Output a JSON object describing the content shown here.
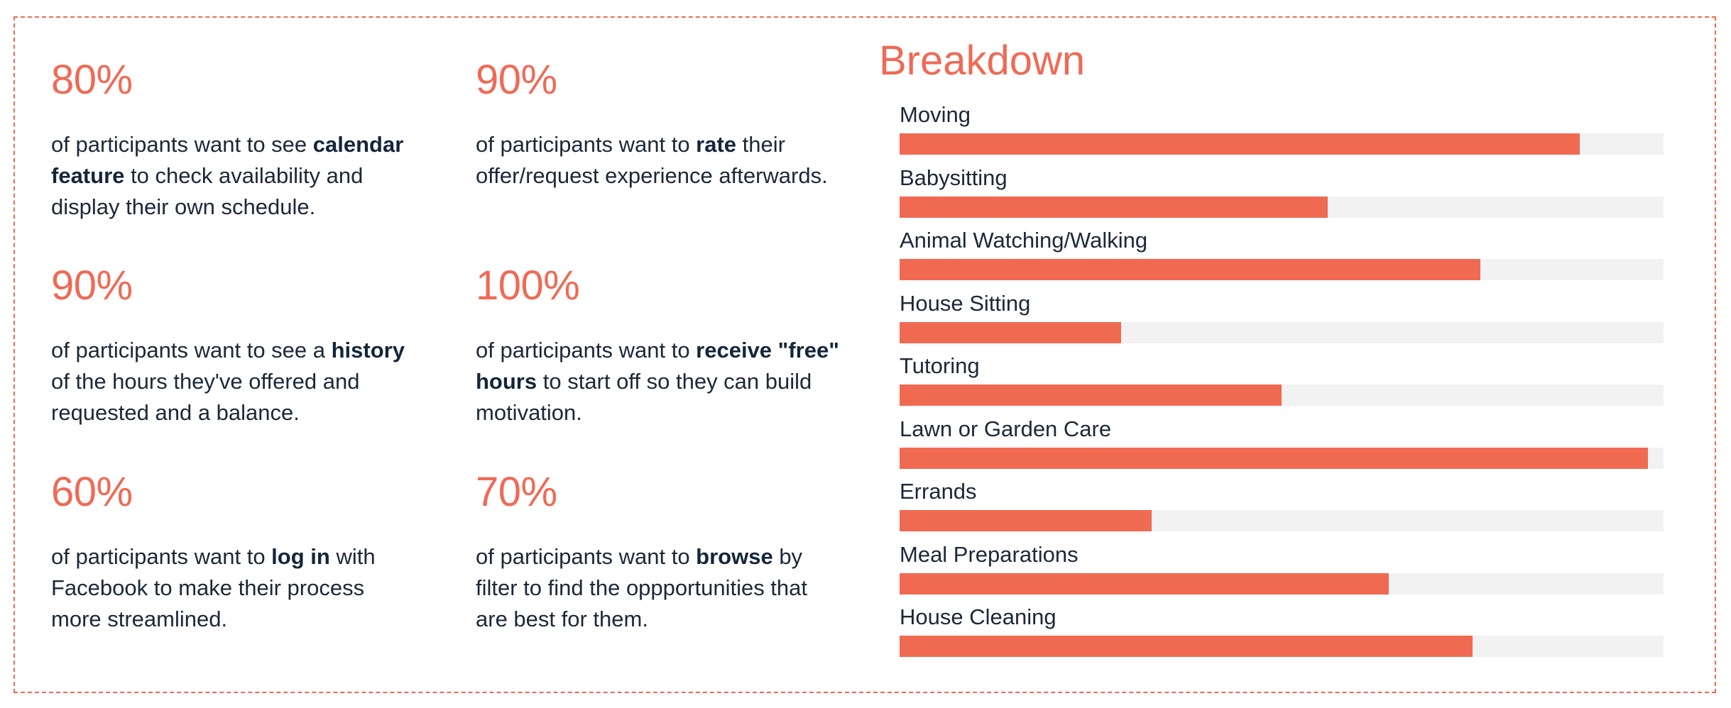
{
  "stats": [
    {
      "percent": "80%",
      "pre": "of participants want to see ",
      "bold": "calendar feature",
      "post": " to check availability and display their own schedule."
    },
    {
      "percent": "90%",
      "pre": "of participants want to ",
      "bold": "rate",
      "post": " their offer/request experience afterwards."
    },
    {
      "percent": "90%",
      "pre": "of participants want to see a ",
      "bold": "history",
      "post": " of the hours they've offered and requested and a balance."
    },
    {
      "percent": "100%",
      "pre": "of participants want to ",
      "bold": "receive \"free\" hours",
      "post": " to start off so they can build motivation."
    },
    {
      "percent": "60%",
      "pre": "of participants want to ",
      "bold": "log in",
      "post": " with Facebook to make their process more streamlined."
    },
    {
      "percent": "70%",
      "pre": "of participants want to ",
      "bold": "browse",
      "post": " by filter to find the oppportunities that are best for them."
    }
  ],
  "colors": {
    "accent": "#ef6a55",
    "bar_fill": "#f06a52",
    "bar_track": "#f2f2f2",
    "text": "#1b2838",
    "border": "#ec6a55"
  },
  "chart_data": {
    "type": "bar",
    "orientation": "horizontal",
    "title": "Breakdown",
    "xlim": [
      0,
      100
    ],
    "grid": false,
    "categories": [
      "Moving",
      "Babysitting",
      "Animal Watching/Walking",
      "House Sitting",
      "Tutoring",
      "Lawn or Garden Care",
      "Errands",
      "Meal Preparations",
      "House Cleaning"
    ],
    "values": [
      89,
      56,
      76,
      29,
      50,
      98,
      33,
      64,
      75
    ]
  }
}
